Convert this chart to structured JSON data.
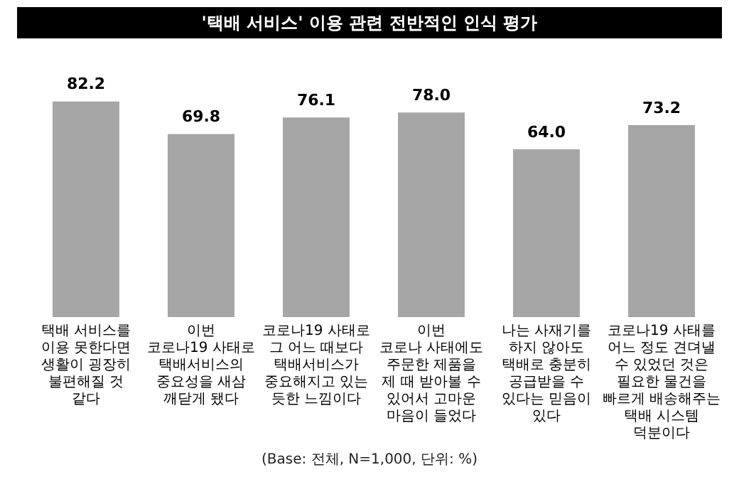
{
  "chart_data": {
    "type": "bar",
    "title": "'택배 서비스' 이용 관련 전반적인 인식 평가",
    "categories": [
      "택배 서비스를\n이용 못한다면\n생활이 굉장히\n불편해질 것\n같다",
      "이번\n코로나19 사태로\n택배서비스의\n중요성을 새삼\n깨닫게 됐다",
      "코로나19 사태로\n그 어느 때보다\n택배서비스가\n중요해지고 있는\n듯한 느낌이다",
      "이번\n코로나 사태에도\n주문한 제품을\n제 때 받아볼 수\n있어서 고마운\n마음이 들었다",
      "나는 사재기를\n하지 않아도\n택배로 충분히\n공급받을 수\n있다는 믿음이\n있다",
      "코로나19 사태를\n어느 정도 견뎌낼\n수 있었던 것은\n필요한 물건을\n빠르게 배송해주는\n택배 시스템\n덕분이다"
    ],
    "values": [
      82.2,
      69.8,
      76.1,
      78.0,
      64.0,
      73.2
    ],
    "value_labels": [
      "82.2",
      "69.8",
      "76.1",
      "78.0",
      "64.0",
      "73.2"
    ],
    "color": "#a6a6a6",
    "annotations": [
      "(Base: 전체, N=1,000, 단위: %)"
    ],
    "grid": false,
    "legend": false
  }
}
